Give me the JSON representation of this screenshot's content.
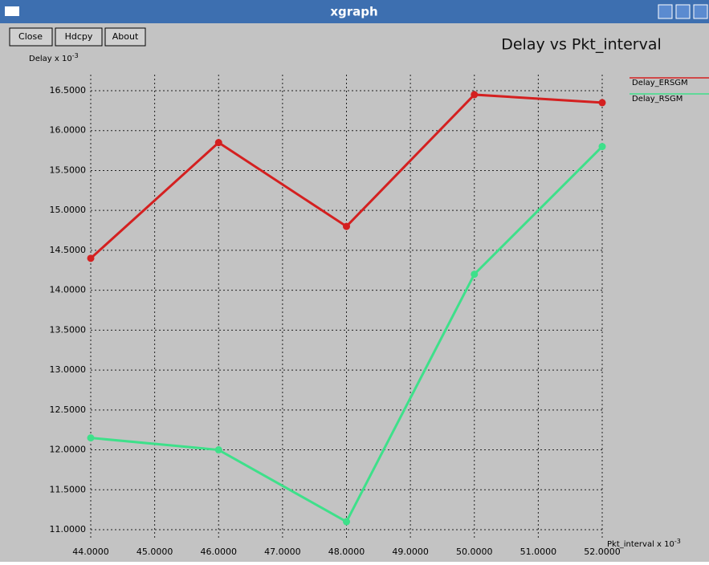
{
  "window": {
    "title": "xgraph",
    "buttons": [
      "Close",
      "Hdcpy",
      "About"
    ]
  },
  "chart_data": {
    "type": "line",
    "title": "Delay vs Pkt_interval",
    "ylabel": {
      "text": "Delay x 10",
      "exponent": "-3"
    },
    "xlabel": {
      "text": "Pkt_interval x 10",
      "exponent": "-3"
    },
    "x": [
      44,
      46,
      48,
      50,
      52
    ],
    "series": [
      {
        "name": "Delay_ERSGM",
        "color": "#d42020",
        "values": [
          14.4,
          15.85,
          14.8,
          16.45,
          16.35
        ]
      },
      {
        "name": "Delay_RSGM",
        "color": "#3ee08a",
        "values": [
          12.15,
          12.0,
          11.1,
          14.2,
          15.8
        ]
      }
    ],
    "xlim": [
      44,
      52
    ],
    "xticks": [
      {
        "value": 44,
        "label": "44.0000"
      },
      {
        "value": 45,
        "label": "45.0000"
      },
      {
        "value": 46,
        "label": "46.0000"
      },
      {
        "value": 47,
        "label": "47.0000"
      },
      {
        "value": 48,
        "label": "48.0000"
      },
      {
        "value": 49,
        "label": "49.0000"
      },
      {
        "value": 50,
        "label": "50.0000"
      },
      {
        "value": 51,
        "label": "51.0000"
      },
      {
        "value": 52,
        "label": "52.0000"
      }
    ],
    "ylim": [
      11,
      16.5
    ],
    "yticks": [
      {
        "value": 11,
        "label": "11.0000"
      },
      {
        "value": 11.5,
        "label": "11.5000"
      },
      {
        "value": 12,
        "label": "12.0000"
      },
      {
        "value": 12.5,
        "label": "12.5000"
      },
      {
        "value": 13,
        "label": "13.0000"
      },
      {
        "value": 13.5,
        "label": "13.5000"
      },
      {
        "value": 14,
        "label": "14.0000"
      },
      {
        "value": 14.5,
        "label": "14.5000"
      },
      {
        "value": 15,
        "label": "15.0000"
      },
      {
        "value": 15.5,
        "label": "15.5000"
      },
      {
        "value": 16,
        "label": "16.0000"
      },
      {
        "value": 16.5,
        "label": "16.5000"
      }
    ],
    "grid": true
  }
}
